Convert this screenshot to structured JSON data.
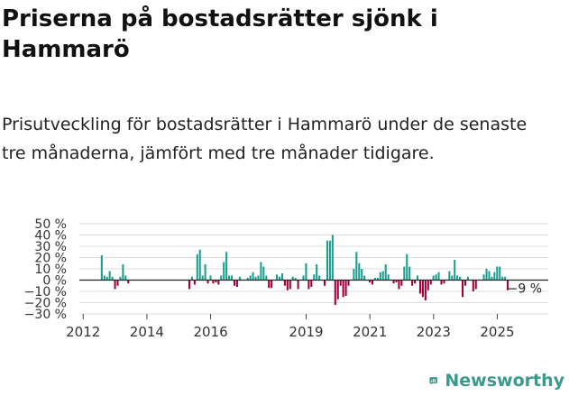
{
  "header": {
    "title": "Priserna på bostadsrätter sjönk i Hammarö",
    "subtitle": "Prisutveckling för bostadsrätter i Hammarö under de senaste tre månaderna, jämfört med tre månader tidigare."
  },
  "brand": {
    "name": "Newsworthy",
    "color": "#3a9a8e",
    "icon": "bar-chart-logo-icon"
  },
  "chart_data": {
    "type": "bar",
    "title": "",
    "xlabel": "",
    "ylabel": "",
    "ylim": [
      -30,
      50
    ],
    "yticks": [
      -30,
      -20,
      -10,
      0,
      10,
      20,
      30,
      40,
      50
    ],
    "ytick_labels": [
      "−30 %",
      "−20 %",
      "−10 %",
      "0 %",
      "10 %",
      "20 %",
      "30 %",
      "40 %",
      "50 %"
    ],
    "x_start": 2012.583,
    "x_step": 0.0833,
    "xticks": [
      2012,
      2014,
      2016,
      2019,
      2021,
      2023,
      2025
    ],
    "xtick_labels": [
      "2012",
      "2014",
      "2016",
      "2019",
      "2021",
      "2023",
      "2025"
    ],
    "positive_color": "#1a9e8f",
    "negative_color": "#a0003a",
    "last_value_label": "−9 %",
    "values": [
      22,
      4,
      3,
      8,
      3,
      -8,
      -5,
      3,
      14,
      4,
      -3,
      0,
      0,
      0,
      0,
      0,
      0,
      0,
      0,
      0,
      0,
      0,
      0,
      0,
      0,
      0,
      0,
      0,
      0,
      0,
      0,
      0,
      0,
      -8,
      3,
      -4,
      23,
      27,
      4,
      14,
      -3,
      4,
      -3,
      -2,
      -4,
      4,
      16,
      25,
      4,
      4,
      -5,
      -6,
      3,
      0,
      0,
      2,
      4,
      7,
      3,
      4,
      16,
      12,
      4,
      -7,
      -7,
      0,
      5,
      3,
      6,
      -5,
      -9,
      -8,
      3,
      2,
      -8,
      0,
      4,
      15,
      -8,
      -6,
      5,
      14,
      4,
      0,
      -5,
      35,
      35,
      40,
      -22,
      -17,
      -5,
      -15,
      -14,
      -5,
      0,
      10,
      25,
      15,
      10,
      4,
      0,
      -2,
      -4,
      2,
      2,
      7,
      8,
      14,
      5,
      0,
      -3,
      -2,
      -8,
      -5,
      12,
      23,
      12,
      -5,
      -3,
      4,
      -12,
      -15,
      -18,
      -9,
      -4,
      4,
      5,
      7,
      -4,
      -3,
      0,
      8,
      4,
      18,
      4,
      3,
      -15,
      -5,
      3,
      0,
      -10,
      -8,
      0,
      0,
      5,
      10,
      8,
      3,
      7,
      12,
      12,
      3,
      3,
      -9
    ]
  }
}
